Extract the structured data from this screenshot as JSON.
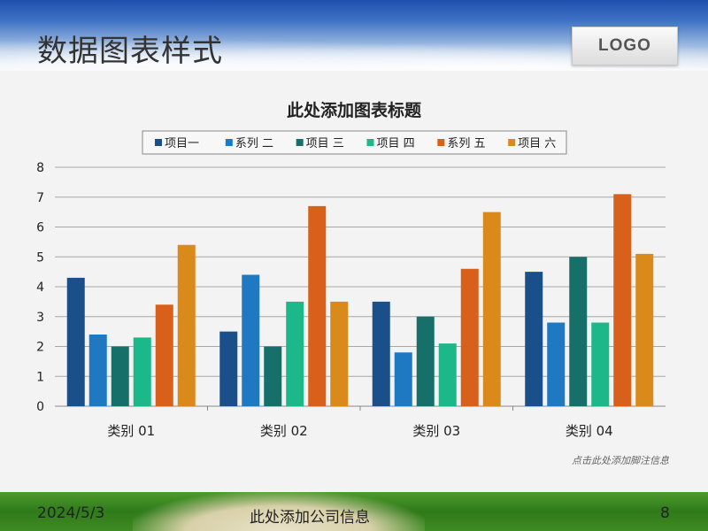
{
  "slide": {
    "title": "数据图表样式",
    "logo_text": "LOGO",
    "footer_date": "2024/5/3",
    "footer_company": "此处添加公司信息",
    "page_number": "8"
  },
  "chart_data": {
    "type": "bar",
    "title": "此处添加图表标题",
    "note": "点击此处添加脚注信息",
    "categories": [
      "类别 01",
      "类别 02",
      "类别 03",
      "类别 04"
    ],
    "ylim": [
      0,
      8
    ],
    "yticks": [
      0,
      1,
      2,
      3,
      4,
      5,
      6,
      7,
      8
    ],
    "grid": true,
    "legend_position": "top",
    "series": [
      {
        "name": "项目一",
        "color": "#1a4f8a",
        "values": [
          4.3,
          2.5,
          3.5,
          4.5
        ]
      },
      {
        "name": "系列 二",
        "color": "#1f79c2",
        "values": [
          2.4,
          4.4,
          1.8,
          2.8
        ]
      },
      {
        "name": "项目 三",
        "color": "#166f68",
        "values": [
          2.0,
          2.0,
          3.0,
          5.0
        ]
      },
      {
        "name": "项目 四",
        "color": "#1db88a",
        "values": [
          2.3,
          3.5,
          2.1,
          2.8
        ]
      },
      {
        "name": "系列 五",
        "color": "#d9601a",
        "values": [
          3.4,
          6.7,
          4.6,
          7.1
        ]
      },
      {
        "name": "项目 六",
        "color": "#d98a1a",
        "values": [
          5.4,
          3.5,
          6.5,
          5.1
        ]
      }
    ]
  }
}
